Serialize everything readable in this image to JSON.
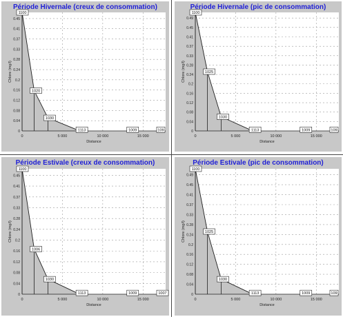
{
  "colors": {
    "title": "#1f1fd6",
    "panel_bg": "#c8c8c8",
    "plot_bg": "#ffffff",
    "fill": "#c4c4c4",
    "line": "#202020",
    "grid": "#9a9a9a",
    "divider": "#444444"
  },
  "chart_data": [
    {
      "type": "area",
      "title": "Période Hivernale (creux de consommation)",
      "xlabel": "Distance",
      "ylabel": "Chlore (mg/l)",
      "xlim": [
        0,
        17800
      ],
      "ylim": [
        0,
        0.5
      ],
      "xticks": [
        "0",
        "5 000",
        "10 000",
        "15 000"
      ],
      "yticks": [
        "0",
        "0.04",
        "0.08",
        "0.12",
        "0.16",
        "0.2",
        "0.24",
        "0.28",
        "0.33",
        "0.37",
        "0.41",
        "0.45"
      ],
      "grid": true,
      "x": [
        0,
        1500,
        3200,
        6800
      ],
      "y": [
        0.5,
        0.17,
        0.055,
        0.005
      ],
      "nodes": [
        {
          "label": "1100",
          "x": 0,
          "y": 0.5
        },
        {
          "label": "1020",
          "x": 1500,
          "y": 0.17
        },
        {
          "label": "1030",
          "x": 3200,
          "y": 0.055
        },
        {
          "label": "1113",
          "x": 7200,
          "y": 0.005
        },
        {
          "label": "1009",
          "x": 13500,
          "y": 0.005
        },
        {
          "label": "109",
          "x": 17200,
          "y": 0.005
        }
      ]
    },
    {
      "type": "area",
      "title": "Période Hivernale (pic de consommation)",
      "xlabel": "Distance",
      "ylabel": "Chlore (mg/l)",
      "xlim": [
        0,
        17800
      ],
      "ylim": [
        0,
        0.5
      ],
      "xticks": [
        "0",
        "5 000",
        "10 000",
        "15 000"
      ],
      "yticks": [
        "0",
        "0.04",
        "0.08",
        "0.12",
        "0.16",
        "0.2",
        "0.24",
        "0.28",
        "0.33",
        "0.37",
        "0.41",
        "0.45",
        "0.49"
      ],
      "grid": true,
      "x": [
        0,
        1500,
        3200,
        6800
      ],
      "y": [
        0.5,
        0.25,
        0.06,
        0.005
      ],
      "nodes": [
        {
          "label": "1100",
          "x": 0,
          "y": 0.5
        },
        {
          "label": "1025",
          "x": 1500,
          "y": 0.25
        },
        {
          "label": "1030",
          "x": 3200,
          "y": 0.06
        },
        {
          "label": "1113",
          "x": 7200,
          "y": 0.005
        },
        {
          "label": "1009",
          "x": 13500,
          "y": 0.005
        },
        {
          "label": "109",
          "x": 17200,
          "y": 0.005
        }
      ]
    },
    {
      "type": "area",
      "title": "Période Estivale (creux de consommation)",
      "xlabel": "Distance",
      "ylabel": "Chlore (mg/l)",
      "xlim": [
        0,
        17800
      ],
      "ylim": [
        0,
        0.5
      ],
      "xticks": [
        "0",
        "5 000",
        "10 000",
        "15 000"
      ],
      "yticks": [
        "0",
        "0.04",
        "0.08",
        "0.12",
        "0.16",
        "0.2",
        "0.24",
        "0.28",
        "0.33",
        "0.37",
        "0.41",
        "0.45"
      ],
      "grid": true,
      "x": [
        0,
        1500,
        3200,
        6800
      ],
      "y": [
        0.5,
        0.18,
        0.06,
        0.005
      ],
      "nodes": [
        {
          "label": "1100",
          "x": 0,
          "y": 0.5
        },
        {
          "label": "1006",
          "x": 1500,
          "y": 0.18
        },
        {
          "label": "1030",
          "x": 3200,
          "y": 0.06
        },
        {
          "label": "1113",
          "x": 7200,
          "y": 0.005
        },
        {
          "label": "1009",
          "x": 13500,
          "y": 0.005
        },
        {
          "label": "1007",
          "x": 17200,
          "y": 0.005
        }
      ]
    },
    {
      "type": "area",
      "title": "Période Estivale (pic de consommation)",
      "xlabel": "Distance",
      "ylabel": "Chlore (mg/l)",
      "xlim": [
        0,
        17800
      ],
      "ylim": [
        0,
        0.5
      ],
      "xticks": [
        "0",
        "5 000",
        "10 000",
        "15 000"
      ],
      "yticks": [
        "0",
        "0.04",
        "0.08",
        "0.12",
        "0.16",
        "0.2",
        "0.24",
        "0.28",
        "0.33",
        "0.37",
        "0.41",
        "0.45",
        "0.49"
      ],
      "grid": true,
      "x": [
        0,
        1500,
        3200,
        6800
      ],
      "y": [
        0.5,
        0.25,
        0.06,
        0.005
      ],
      "nodes": [
        {
          "label": "1100",
          "x": 0,
          "y": 0.5
        },
        {
          "label": "1025",
          "x": 1500,
          "y": 0.25
        },
        {
          "label": "1030",
          "x": 3200,
          "y": 0.06
        },
        {
          "label": "1113",
          "x": 7200,
          "y": 0.005
        },
        {
          "label": "1009",
          "x": 13500,
          "y": 0.005
        },
        {
          "label": "109",
          "x": 17200,
          "y": 0.005
        }
      ]
    }
  ]
}
